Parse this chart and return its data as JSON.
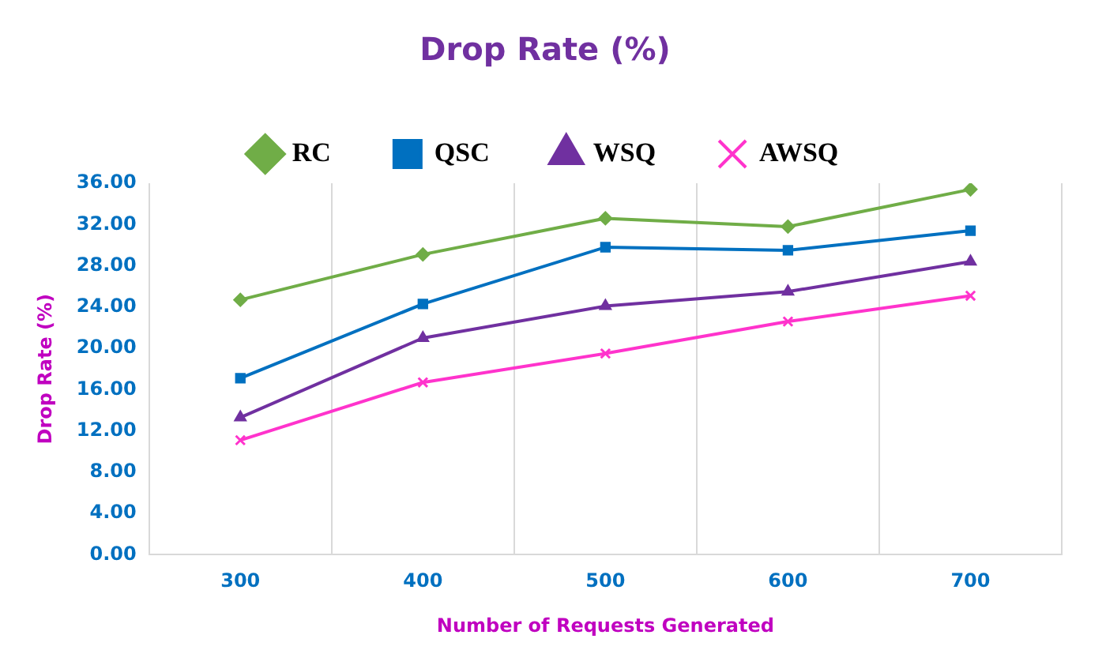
{
  "chart_data": {
    "type": "line",
    "title": "Drop Rate (%)",
    "xlabel": "Number of Requests Generated",
    "ylabel": "Drop Rate (%)",
    "categories": [
      "300",
      "400",
      "500",
      "600",
      "700"
    ],
    "series": [
      {
        "name": "RC",
        "color": "#70ad47",
        "marker": "diamond",
        "values": [
          24.7,
          29.1,
          32.6,
          31.8,
          35.4
        ]
      },
      {
        "name": "QSC",
        "color": "#0070c0",
        "marker": "square",
        "values": [
          17.1,
          24.3,
          29.8,
          29.5,
          31.4
        ]
      },
      {
        "name": "WSQ",
        "color": "#7030a0",
        "marker": "triangle",
        "values": [
          13.3,
          21.0,
          24.1,
          25.5,
          28.4
        ]
      },
      {
        "name": "AWSQ",
        "color": "#ff33cc",
        "marker": "cross",
        "values": [
          11.1,
          16.7,
          19.5,
          22.6,
          25.1
        ]
      }
    ],
    "ylim": [
      0,
      36
    ],
    "yticks": [
      {
        "value": 0,
        "label": "0.00"
      },
      {
        "value": 4,
        "label": "4.00"
      },
      {
        "value": 8,
        "label": "8.00"
      },
      {
        "value": 12,
        "label": "12.00"
      },
      {
        "value": 16,
        "label": "16.00"
      },
      {
        "value": 20,
        "label": "20.00"
      },
      {
        "value": 24,
        "label": "24.00"
      },
      {
        "value": 28,
        "label": "28.00"
      },
      {
        "value": 32,
        "label": "32.00"
      },
      {
        "value": 36,
        "label": "36.00"
      }
    ],
    "grid": "x",
    "legend": "top",
    "line_style": "solid"
  }
}
